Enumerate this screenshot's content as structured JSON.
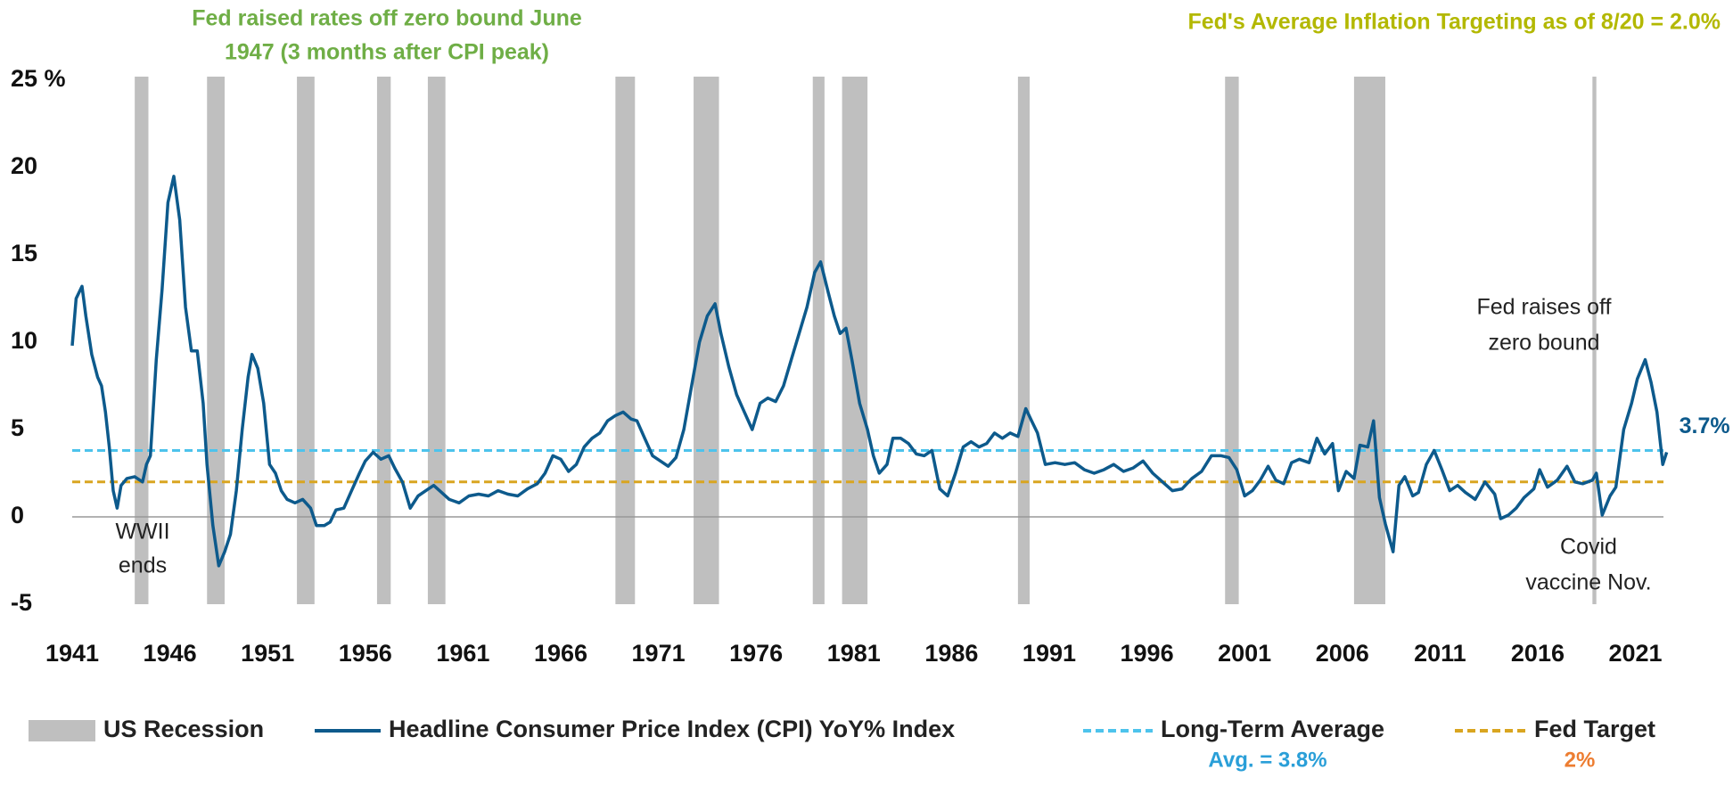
{
  "chart_data": {
    "type": "line",
    "xlim": [
      1941,
      2022.8
    ],
    "xticks": [
      1941,
      1946,
      1951,
      1956,
      1961,
      1966,
      1971,
      1976,
      1981,
      1986,
      1991,
      1996,
      2001,
      2006,
      2011,
      2016,
      2021
    ],
    "ylim": [
      -5,
      25
    ],
    "yticks": [
      -5,
      0,
      5,
      10,
      15,
      {
        "value": 25,
        "label": "25 %"
      },
      20
    ],
    "series": [
      {
        "name": "Headline Consumer Price Index (CPI) YoY% Index",
        "color": "#0d5a8c",
        "x": [
          1941.0,
          1941.2,
          1941.5,
          1941.7,
          1942.0,
          1942.3,
          1942.5,
          1942.7,
          1942.9,
          1943.1,
          1943.3,
          1943.5,
          1943.8,
          1944.2,
          1944.6,
          1944.8,
          1945.0,
          1945.3,
          1945.6,
          1945.9,
          1946.2,
          1946.5,
          1946.8,
          1947.1,
          1947.4,
          1947.7,
          1947.9,
          1948.2,
          1948.5,
          1948.8,
          1949.1,
          1949.4,
          1949.7,
          1950.0,
          1950.2,
          1950.5,
          1950.8,
          1951.1,
          1951.4,
          1951.7,
          1952.0,
          1952.4,
          1952.8,
          1953.2,
          1953.5,
          1953.9,
          1954.2,
          1954.5,
          1954.9,
          1955.3,
          1955.7,
          1956.0,
          1956.4,
          1956.8,
          1957.2,
          1957.5,
          1957.9,
          1958.3,
          1958.7,
          1959.1,
          1959.5,
          1959.9,
          1960.3,
          1960.8,
          1961.3,
          1961.8,
          1962.3,
          1962.8,
          1963.3,
          1963.8,
          1964.3,
          1964.8,
          1965.2,
          1965.6,
          1966.0,
          1966.4,
          1966.8,
          1967.2,
          1967.6,
          1968.0,
          1968.4,
          1968.8,
          1969.2,
          1969.6,
          1969.9,
          1970.3,
          1970.7,
          1971.1,
          1971.5,
          1971.9,
          1972.3,
          1972.7,
          1973.1,
          1973.5,
          1973.9,
          1974.2,
          1974.6,
          1975.0,
          1975.4,
          1975.8,
          1976.2,
          1976.6,
          1977.0,
          1977.4,
          1977.8,
          1978.2,
          1978.6,
          1979.0,
          1979.3,
          1979.7,
          1980.0,
          1980.3,
          1980.6,
          1980.9,
          1981.3,
          1981.7,
          1982.0,
          1982.3,
          1982.7,
          1983.0,
          1983.4,
          1983.8,
          1984.2,
          1984.6,
          1985.0,
          1985.4,
          1985.8,
          1986.2,
          1986.6,
          1987.0,
          1987.4,
          1987.8,
          1988.2,
          1988.6,
          1989.0,
          1989.4,
          1989.8,
          1990.1,
          1990.4,
          1990.8,
          1991.3,
          1991.8,
          1992.3,
          1992.8,
          1993.3,
          1993.8,
          1994.3,
          1994.8,
          1995.3,
          1995.8,
          1996.3,
          1996.8,
          1997.3,
          1997.8,
          1998.3,
          1998.8,
          1999.3,
          1999.8,
          2000.2,
          2000.6,
          2001.0,
          2001.4,
          2001.8,
          2002.2,
          2002.6,
          2003.0,
          2003.4,
          2003.8,
          2004.3,
          2004.7,
          2005.1,
          2005.5,
          2005.8,
          2006.2,
          2006.6,
          2006.9,
          2007.3,
          2007.6,
          2007.9,
          2008.2,
          2008.6,
          2008.9,
          2009.2,
          2009.6,
          2009.9,
          2010.3,
          2010.7,
          2011.1,
          2011.5,
          2011.9,
          2012.3,
          2012.8,
          2013.3,
          2013.8,
          2014.1,
          2014.5,
          2014.9,
          2015.3,
          2015.8,
          2016.1,
          2016.5,
          2017.0,
          2017.5,
          2017.9,
          2018.3,
          2018.8,
          2019.0,
          2019.3,
          2019.7,
          2020.0,
          2020.4,
          2020.8,
          2021.1,
          2021.5,
          2021.8,
          2022.1,
          2022.4,
          2022.6
        ],
        "values": [
          9.8,
          12.5,
          13.2,
          11.5,
          9.3,
          8.0,
          7.5,
          6.0,
          4.0,
          1.5,
          0.5,
          1.8,
          2.2,
          2.3,
          2.0,
          3.0,
          3.5,
          9.0,
          13,
          18,
          19.5,
          17,
          12,
          9.5,
          9.5,
          6.5,
          3.0,
          -0.5,
          -2.8,
          -2.0,
          -1.0,
          1.5,
          5.0,
          8.0,
          9.3,
          8.5,
          6.5,
          3.0,
          2.5,
          1.5,
          1.0,
          0.8,
          1.0,
          0.5,
          -0.5,
          -0.5,
          -0.3,
          0.4,
          0.5,
          1.5,
          2.5,
          3.2,
          3.7,
          3.3,
          3.5,
          2.8,
          2.0,
          0.5,
          1.2,
          1.5,
          1.8,
          1.4,
          1.0,
          0.8,
          1.2,
          1.3,
          1.2,
          1.5,
          1.3,
          1.2,
          1.6,
          1.9,
          2.5,
          3.5,
          3.3,
          2.6,
          3.0,
          4.0,
          4.5,
          4.8,
          5.5,
          5.8,
          6.0,
          5.6,
          5.5,
          4.5,
          3.5,
          3.2,
          2.9,
          3.4,
          5.0,
          7.5,
          10.0,
          11.5,
          12.2,
          10.5,
          8.6,
          7.0,
          6.0,
          5.0,
          6.5,
          6.8,
          6.6,
          7.5,
          9.0,
          10.5,
          12.0,
          14.0,
          14.6,
          12.8,
          11.5,
          10.5,
          10.8,
          9.0,
          6.5,
          5.0,
          3.5,
          2.5,
          3.0,
          4.5,
          4.5,
          4.2,
          3.6,
          3.5,
          3.8,
          1.6,
          1.2,
          2.5,
          4.0,
          4.3,
          4.0,
          4.2,
          4.8,
          4.5,
          4.8,
          4.6,
          6.2,
          5.5,
          4.8,
          3.0,
          3.1,
          3.0,
          3.1,
          2.7,
          2.5,
          2.7,
          3.0,
          2.6,
          2.8,
          3.2,
          2.5,
          2.0,
          1.5,
          1.6,
          2.2,
          2.6,
          3.5,
          3.5,
          3.4,
          2.7,
          1.2,
          1.5,
          2.1,
          2.9,
          2.1,
          1.9,
          3.1,
          3.3,
          3.1,
          4.5,
          3.6,
          4.2,
          1.5,
          2.6,
          2.2,
          4.1,
          4.0,
          5.5,
          1.1,
          -0.4,
          -2.0,
          1.8,
          2.3,
          1.2,
          1.4,
          3.0,
          3.8,
          2.7,
          1.5,
          1.8,
          1.4,
          1.0,
          2.0,
          1.3,
          -0.1,
          0.1,
          0.5,
          1.1,
          1.6,
          2.7,
          1.7,
          2.1,
          2.9,
          2.0,
          1.9,
          2.1,
          2.5,
          0.1,
          1.2,
          1.7,
          5.0,
          6.5,
          7.9,
          9.0,
          7.7,
          6.0,
          3.0,
          3.7
        ],
        "end_label": {
          "value": 3.7,
          "label": "3.7%"
        }
      }
    ],
    "recessions": {
      "name": "US Recession",
      "color": "#bfbfbf",
      "ranges": [
        [
          1944.2,
          1944.9
        ],
        [
          1947.9,
          1948.8
        ],
        [
          1952.5,
          1953.4
        ],
        [
          1956.6,
          1957.3
        ],
        [
          1959.2,
          1960.1
        ],
        [
          1968.8,
          1969.8
        ],
        [
          1972.8,
          1974.1
        ],
        [
          1978.9,
          1979.5
        ],
        [
          1980.4,
          1981.7
        ],
        [
          1989.4,
          1990.0
        ],
        [
          2000.0,
          2000.7
        ],
        [
          2006.6,
          2008.2
        ],
        [
          2018.8,
          2019.0
        ]
      ]
    },
    "reference_lines": [
      {
        "name": "Long-Term Average",
        "value": 3.8,
        "label": "Avg. = 3.8%",
        "color": "#4dc3ec",
        "label_color": "#2a9fd8"
      },
      {
        "name": "Fed Target",
        "value": 2,
        "label": "2%",
        "color": "#d9a520",
        "label_color": "#ed7d31"
      }
    ],
    "annotations": [
      {
        "lines": [
          "Fed raised rates off zero bound June",
          "1947 (3 months after CPI peak)"
        ],
        "color": "#6fae46"
      },
      {
        "lines": [
          "Fed's Average Inflation Targeting as of 8/20 = 2.0%"
        ],
        "color": "#b3b800"
      },
      {
        "lines": [
          "WWII",
          "ends"
        ],
        "color": "#222222"
      },
      {
        "lines": [
          "Fed raises off",
          "zero bound"
        ],
        "color": "#222222"
      },
      {
        "lines": [
          "Covid",
          "vaccine Nov."
        ],
        "color": "#222222"
      }
    ]
  }
}
